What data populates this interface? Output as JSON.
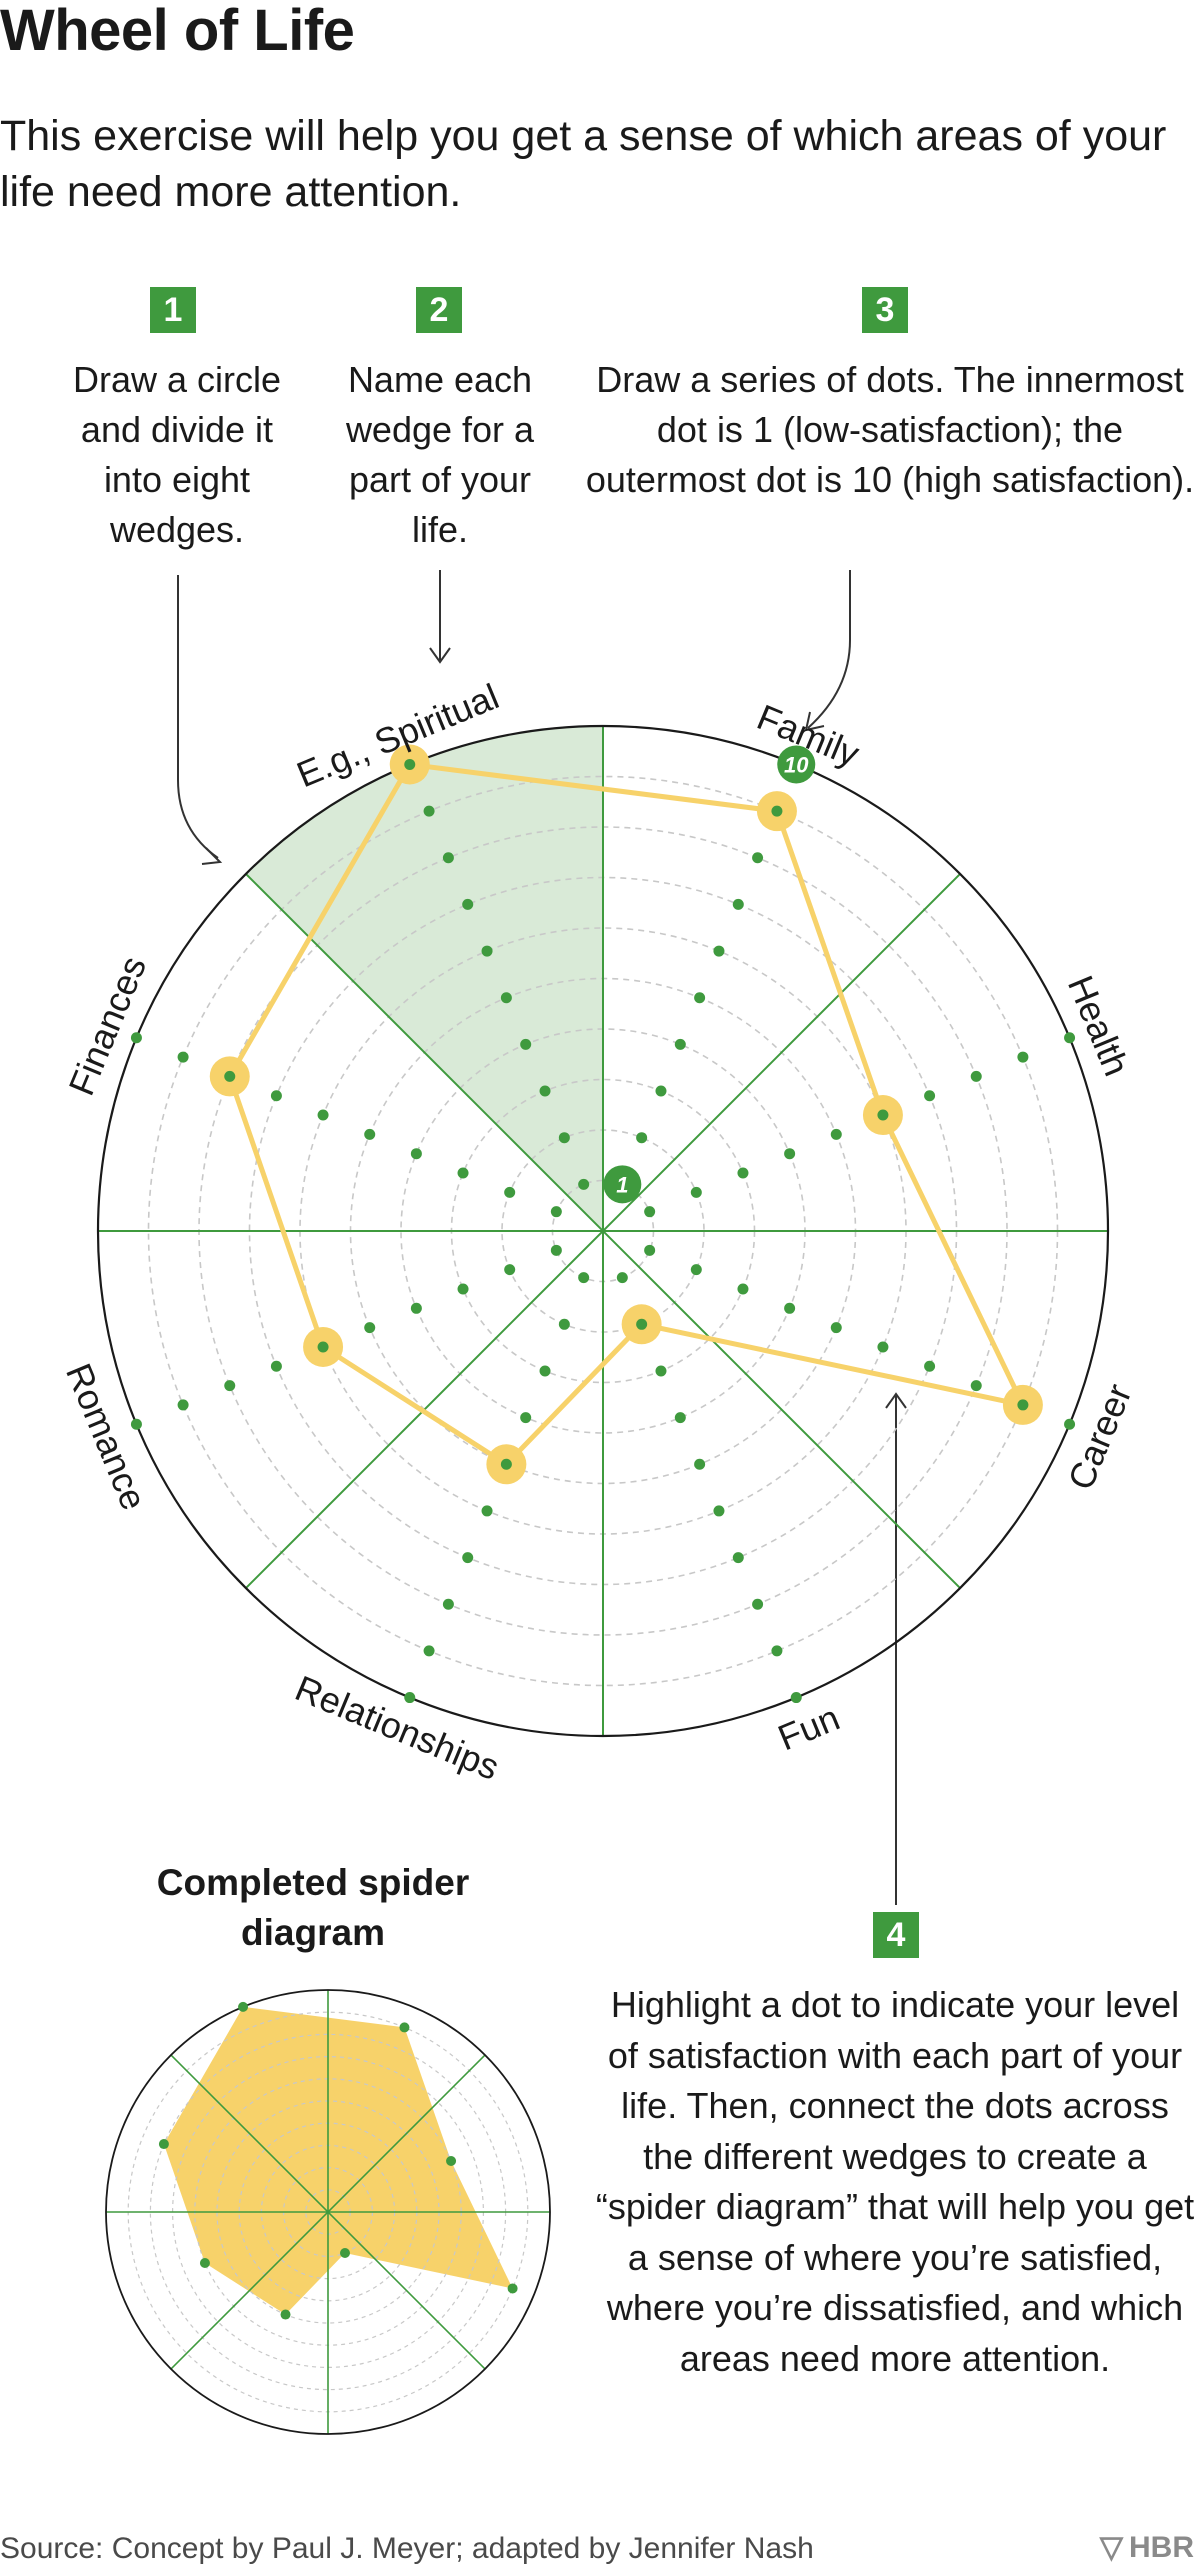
{
  "title": "Wheel of Life",
  "subtitle": "This exercise will help you get a sense of which areas of your life need more attention.",
  "steps": [
    {
      "number": "1",
      "text": "Draw a circle and divide it into eight wedges."
    },
    {
      "number": "2",
      "text": "Name each wedge for a part of your life."
    },
    {
      "number": "3",
      "text": "Draw a series of dots. The innermost dot is 1 (low-satisfaction); the outermost dot is 10 (high satisfaction)."
    },
    {
      "number": "4",
      "text": "Highlight a dot to indicate your level of satisfaction with each part of your life. Then, connect the dots across the different wedges to create a “spider diagram” that will help you get a sense of where you’re satisfied, where you’re dissatisfied, and which areas need more attention."
    }
  ],
  "wheel": {
    "wedges": [
      "E.g., Spiritual",
      "Family",
      "Health",
      "Career",
      "Fun",
      "Relationships",
      "Romance",
      "Finances"
    ],
    "scale_min_label": "1",
    "scale_max_label": "10",
    "scores": [
      10,
      9,
      6,
      9,
      2,
      5,
      6,
      8
    ],
    "highlighted_wedge": "E.g., Spiritual"
  },
  "completed_title": "Completed spider diagram",
  "source": "Source: Concept by Paul J. Meyer; adapted by Jennifer Nash",
  "brand": "HBR",
  "colors": {
    "green": "#3f9a3e",
    "yellow": "#f7d26a",
    "highlight_fill": "#d9ead7",
    "badge": "#3f9a3e",
    "ring": "#c8c8c8"
  }
}
